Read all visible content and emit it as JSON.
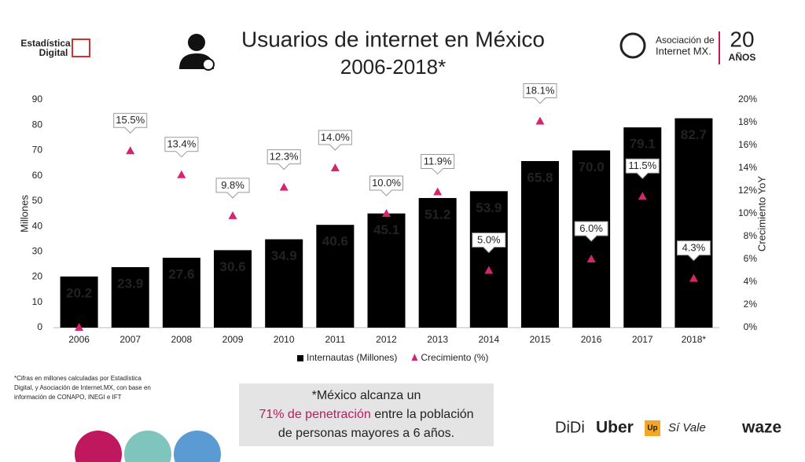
{
  "chart_data": {
    "type": "bar",
    "title": "Usuarios de internet en México",
    "subtitle": "2006-2018*",
    "y_label": "Millones",
    "y2_label": "Crecimiento YoY",
    "categories": [
      "2006",
      "2007",
      "2008",
      "2009",
      "2010",
      "2011",
      "2012",
      "2013",
      "2014",
      "2015",
      "2016",
      "2017",
      "2018*"
    ],
    "series": [
      {
        "name": "Internautas (Millones)",
        "color": "#000000",
        "type": "bar",
        "values": [
          20.2,
          23.9,
          27.6,
          30.6,
          34.9,
          40.6,
          45.1,
          51.2,
          53.9,
          65.8,
          70.0,
          79.1,
          82.7
        ],
        "value_labels": [
          "20.2",
          "23.9",
          "27.6",
          "30.6",
          "34.9",
          "40.6",
          "45.1",
          "51.2",
          "53.9",
          "65.8",
          "70.0",
          "79.1",
          "82.7"
        ]
      },
      {
        "name": "Crecimiento (%)",
        "color": "#d6246e",
        "type": "scatter",
        "axis": "y2",
        "values": [
          0,
          15.5,
          13.4,
          9.8,
          12.3,
          14.0,
          10.0,
          11.9,
          5.0,
          18.1,
          6.0,
          11.5,
          4.3
        ],
        "value_labels": [
          null,
          "15.5%",
          "13.4%",
          "9.8%",
          "12.3%",
          "14.0%",
          "10.0%",
          "11.9%",
          "5.0%",
          "18.1%",
          "6.0%",
          "11.5%",
          "4.3%"
        ]
      }
    ],
    "ylim": [
      0,
      90
    ],
    "yticks": [
      0,
      10,
      20,
      30,
      40,
      50,
      60,
      70,
      80,
      90
    ],
    "y2lim": [
      0,
      20
    ],
    "y2ticks": [
      {
        "value": 0,
        "label": "0%"
      },
      {
        "value": 2,
        "label": "2%"
      },
      {
        "value": 4,
        "label": "4%"
      },
      {
        "value": 6,
        "label": "6%"
      },
      {
        "value": 8,
        "label": "8%"
      },
      {
        "value": 10,
        "label": "10%"
      },
      {
        "value": 12,
        "label": "12%"
      },
      {
        "value": 14,
        "label": "14%"
      },
      {
        "value": 16,
        "label": "16%"
      },
      {
        "value": 18,
        "label": "18%"
      },
      {
        "value": 20,
        "label": "20%"
      }
    ],
    "legend": "bottom",
    "grid": false
  },
  "footnote": [
    "*Cifras en millones calculadas por Estadística",
    "Digital, y Asociación de Internet.MX, con base en",
    "información de CONAPO, INEGI e IFT"
  ],
  "callout": {
    "line1": "*México alcanza un",
    "highlight": "71% de penetración",
    "line2": " entre la población",
    "line3": "de personas mayores a 6 años."
  },
  "logos": {
    "left1": "Estadística",
    "left2": "Digital",
    "right1": "Asociación de",
    "right2": "Internet MX.",
    "years": "20",
    "years_word": "AÑOS",
    "sponsors": [
      "DiDi",
      "Uber",
      "Up",
      "Sí Vale",
      "waze"
    ]
  }
}
